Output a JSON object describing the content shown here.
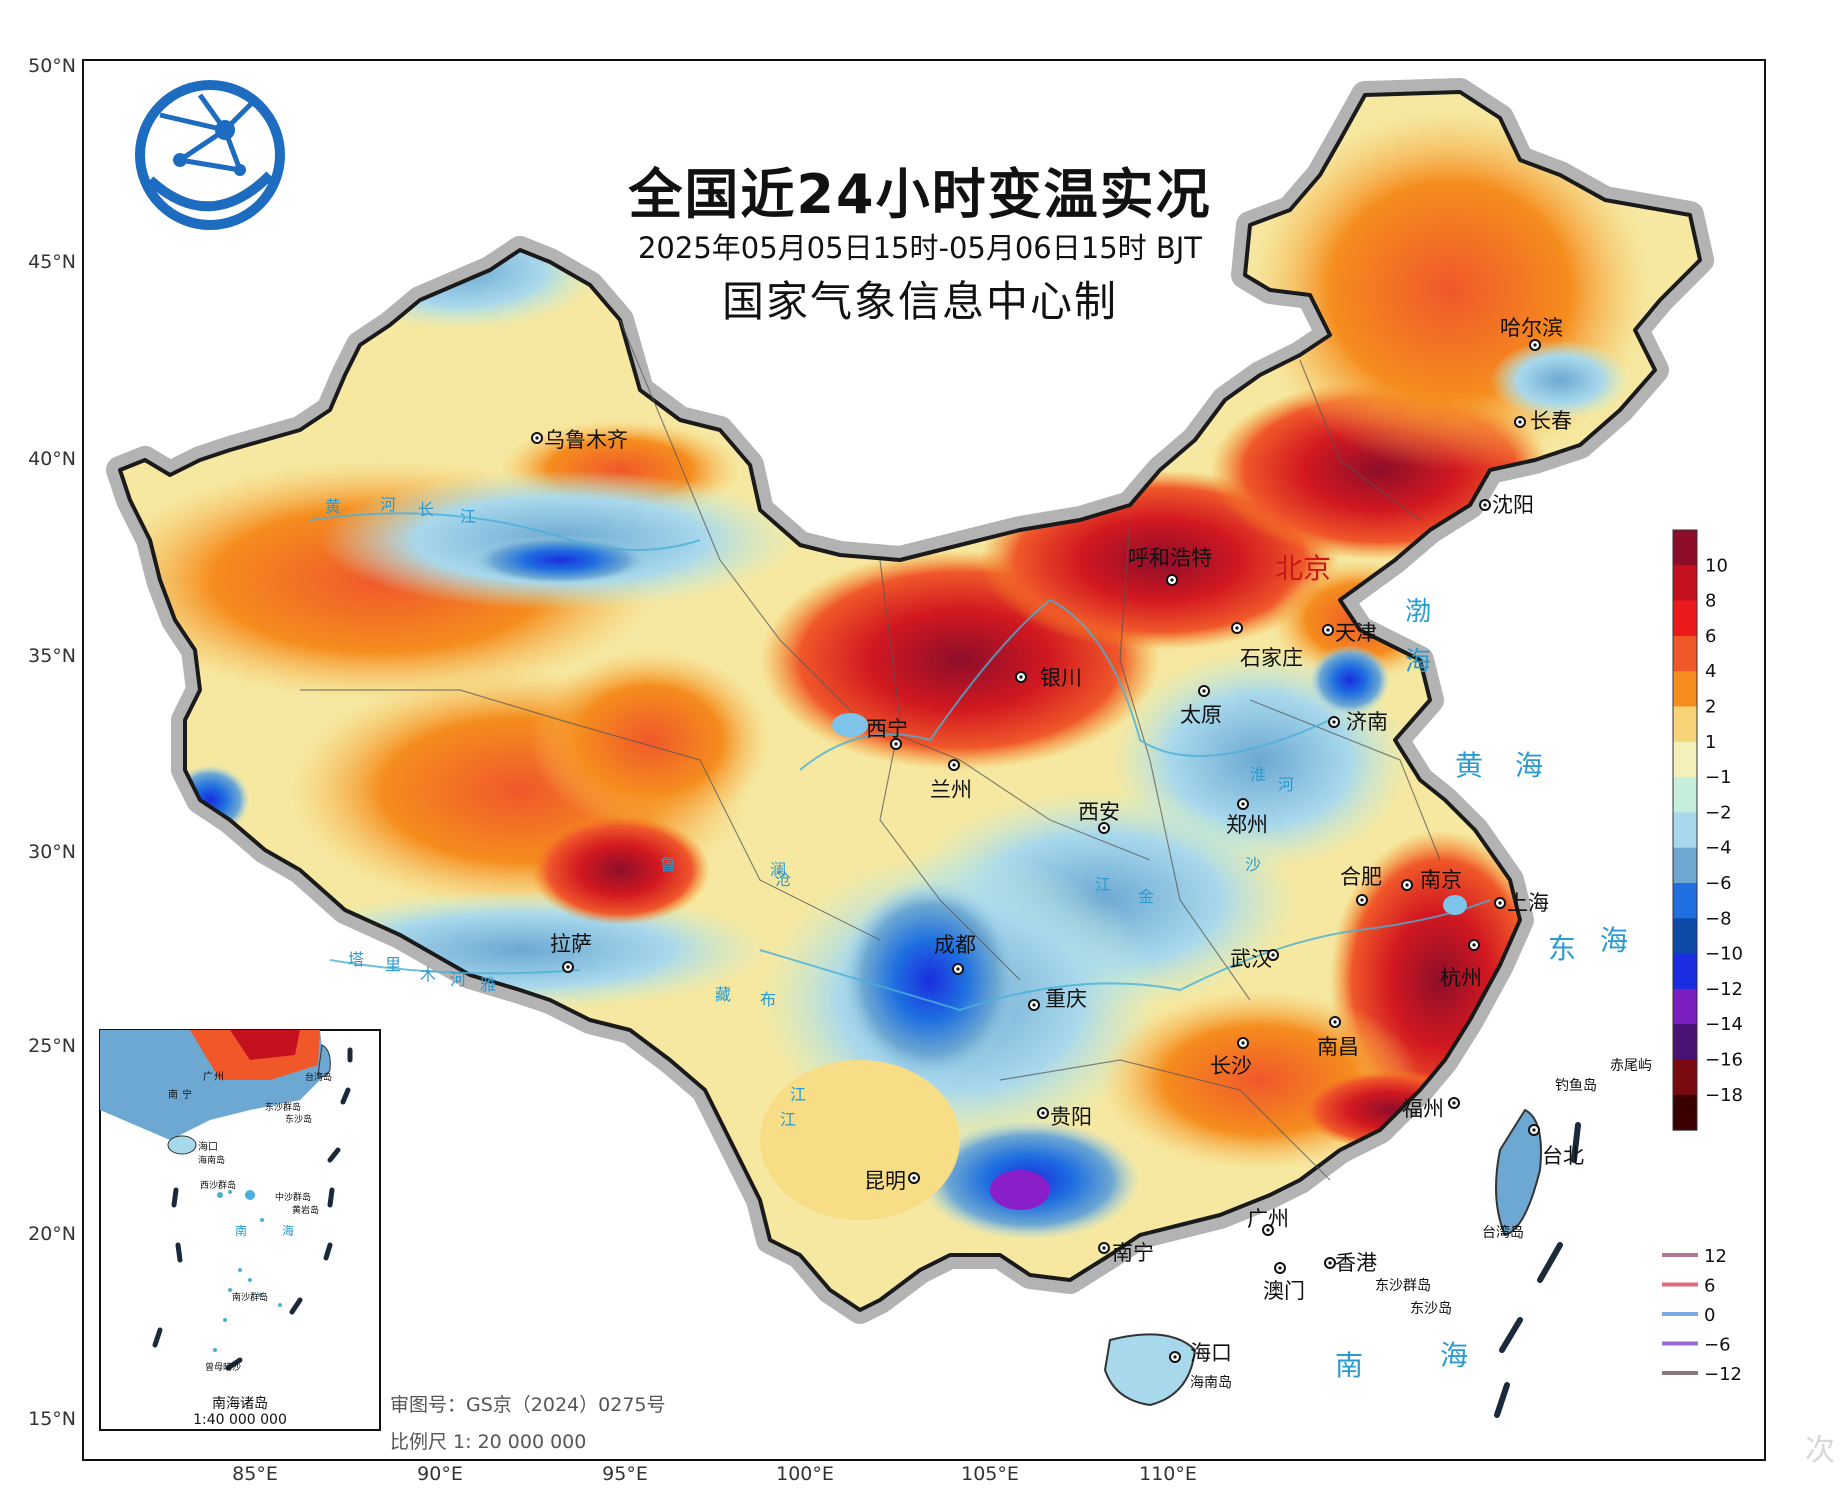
{
  "map": {
    "title": "全国近24小时变温实况",
    "subtitle": "2025年05月05日15时-05月06日15时 BJT",
    "agency": "国家气象信息中心制",
    "approval": "审图号：GS京（2024）0275号",
    "scale": "比例尺 1: 20 000 000",
    "logo_icon": "globe-network-logo-icon",
    "latitude_labels": [
      "50°N",
      "45°N",
      "40°N",
      "35°N",
      "30°N",
      "25°N",
      "20°N",
      "15°N"
    ],
    "longitude_labels": [
      "85°E",
      "90°E",
      "95°E",
      "100°E",
      "105°E",
      "110°E"
    ],
    "cities": [
      {
        "name": "哈尔滨"
      },
      {
        "name": "长春"
      },
      {
        "name": "沈阳"
      },
      {
        "name": "乌鲁木齐"
      },
      {
        "name": "呼和浩特"
      },
      {
        "name": "北京"
      },
      {
        "name": "天津"
      },
      {
        "name": "石家庄"
      },
      {
        "name": "银川"
      },
      {
        "name": "太原"
      },
      {
        "name": "济南"
      },
      {
        "name": "西宁"
      },
      {
        "name": "兰州"
      },
      {
        "name": "西安"
      },
      {
        "name": "郑州"
      },
      {
        "name": "合肥"
      },
      {
        "name": "南京"
      },
      {
        "name": "上海"
      },
      {
        "name": "杭州"
      },
      {
        "name": "拉萨"
      },
      {
        "name": "成都"
      },
      {
        "name": "武汉"
      },
      {
        "name": "重庆"
      },
      {
        "name": "南昌"
      },
      {
        "name": "长沙"
      },
      {
        "name": "福州"
      },
      {
        "name": "贵阳"
      },
      {
        "name": "台北"
      },
      {
        "name": "昆明"
      },
      {
        "name": "广州"
      },
      {
        "name": "南宁"
      },
      {
        "name": "香港"
      },
      {
        "name": "澳门"
      },
      {
        "name": "海口"
      }
    ],
    "sea_labels": [
      "渤",
      "海",
      "黄",
      "海",
      "东",
      "海",
      "南",
      "海"
    ],
    "island_labels": [
      "钓鱼岛",
      "赤尾屿",
      "台湾岛",
      "东沙群岛",
      "东沙岛",
      "海南岛"
    ],
    "river_labels": [
      "黄",
      "河",
      "长",
      "江",
      "塔",
      "里",
      "木",
      "河",
      "雅",
      "鲁",
      "藏",
      "布",
      "江",
      "澜",
      "沧",
      "江",
      "金",
      "沙",
      "江",
      "淮",
      "河"
    ],
    "inset": {
      "caption": "南海诸岛",
      "scale": "1:40 000 000",
      "labels": [
        "南",
        "宁",
        "广",
        "州",
        "台湾岛",
        "东沙群岛",
        "东沙岛",
        "海口",
        "海南岛",
        "西沙群岛",
        "中沙群岛",
        "黄岩岛",
        "南",
        "海",
        "南沙群岛",
        "曾母暗沙"
      ]
    },
    "legend": {
      "fill_values": [
        "10",
        "8",
        "6",
        "4",
        "2",
        "1",
        "−1",
        "−2",
        "−4",
        "−6",
        "−8",
        "−10",
        "−12",
        "−14",
        "−16",
        "−18"
      ],
      "fill_colors": [
        "#8e0e2a",
        "#c4101f",
        "#ec1a1a",
        "#f0582a",
        "#f58d1e",
        "#f9d377",
        "#f3f0bb",
        "#c6efdb",
        "#a8d8ec",
        "#6da8d2",
        "#1f6fe0",
        "#0d4aa8",
        "#1a2de0",
        "#7a1ec0",
        "#4a1274",
        "#7a0a10",
        "#3a0000"
      ],
      "line_values": [
        "12",
        "6",
        "0",
        "−6",
        "−12"
      ],
      "line_colors": [
        "#b07890",
        "#e06a78",
        "#7aa8e0",
        "#9a6ad0",
        "#8a7a80"
      ]
    },
    "watermark": "次"
  }
}
